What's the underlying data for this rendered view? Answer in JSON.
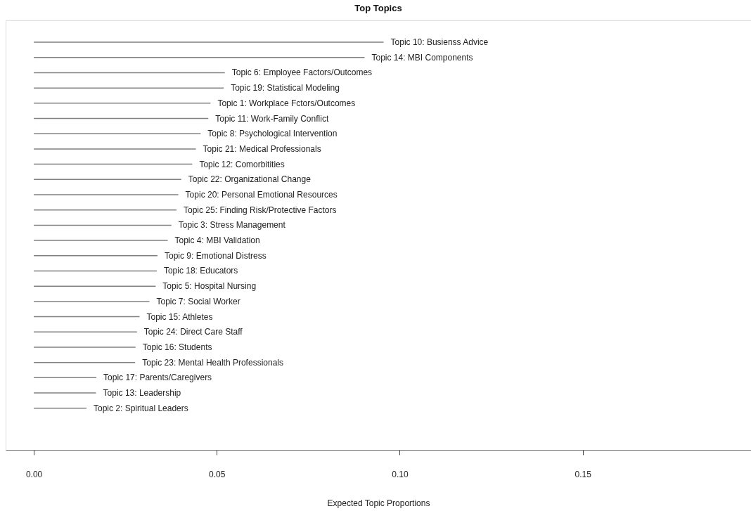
{
  "chart_data": {
    "type": "bar",
    "orientation": "horizontal",
    "title": "Top Topics",
    "xlabel": "Expected Topic Proportions",
    "categories": [
      "Topic 10: Busienss Advice",
      "Topic 14: MBI Components",
      "Topic 6: Employee Factors/Outcomes",
      "Topic 19: Statistical Modeling",
      "Topic 1: Workplace Fctors/Outcomes",
      "Topic 11: Work-Family Conflict",
      "Topic 8: Psychological Intervention",
      "Topic 21: Medical Professionals",
      "Topic 12: Comorbitities",
      "Topic 22: Organizational Change",
      "Topic 20: Personal Emotional Resources",
      "Topic 25: Finding Risk/Protective Factors",
      "Topic 3: Stress Management",
      "Topic 4: MBI Validation",
      "Topic 9: Emotional Distress",
      "Topic 18: Educators",
      "Topic 5: Hospital Nursing",
      "Topic 7: Social Worker",
      "Topic 15: Athletes",
      "Topic 24: Direct Care Staff",
      "Topic 16: Students",
      "Topic 23: Mental Health Professionals",
      "Topic 17: Parents/Caregivers",
      "Topic 13: Leadership",
      "Topic 2: Spiritual Leaders"
    ],
    "values": [
      0.0956,
      0.0904,
      0.0522,
      0.0519,
      0.0483,
      0.0477,
      0.0456,
      0.0443,
      0.0433,
      0.0403,
      0.0395,
      0.039,
      0.0376,
      0.0366,
      0.0338,
      0.0336,
      0.0333,
      0.0316,
      0.0289,
      0.0282,
      0.0278,
      0.0277,
      0.0171,
      0.017,
      0.0144
    ],
    "color": "#808080",
    "xlim": [
      -0.0077,
      0.196
    ],
    "xticks": [
      {
        "value": 0,
        "label": "0.00"
      },
      {
        "value": 0.05,
        "label": "0.05"
      },
      {
        "value": 0.1,
        "label": "0.10"
      },
      {
        "value": 0.15,
        "label": "0.15"
      }
    ],
    "tick_labels": "x",
    "grid": false
  }
}
